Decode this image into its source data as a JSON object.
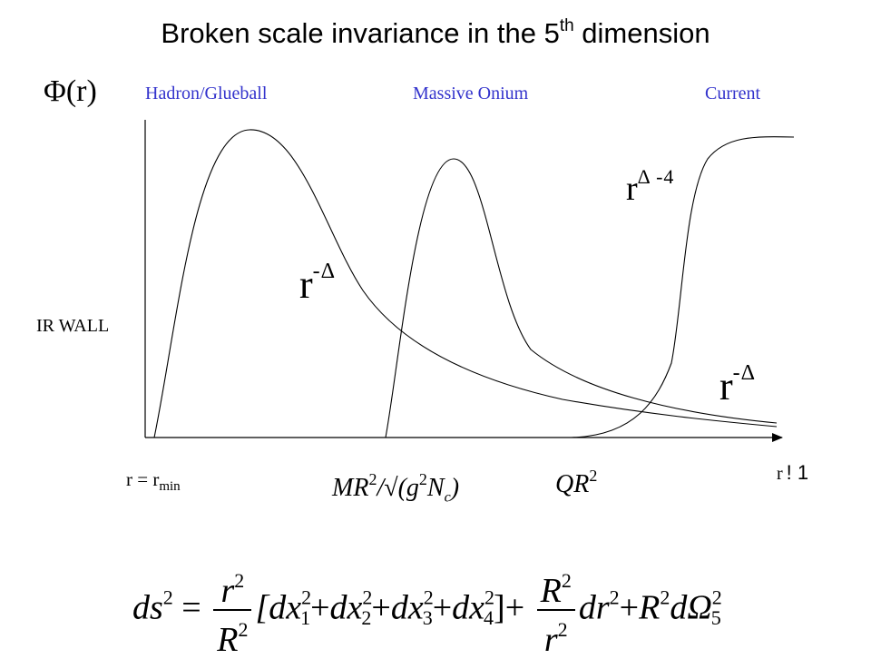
{
  "title": {
    "main": "Broken scale invariance in  the 5",
    "superscript": "th",
    "tail": " dimension"
  },
  "axis": {
    "y_label": "Φ(r)",
    "left_side_label": "IR WALL",
    "x_start_label": "r = r",
    "x_start_subscript": "min",
    "x_end_label": "r",
    "x_end_glyph": "! 1"
  },
  "regions": {
    "hadron": "Hadron/Glueball",
    "onium": "Massive Onium",
    "current": "Current"
  },
  "curve_labels": {
    "upper": {
      "base": "r",
      "exponent": "Δ -4"
    },
    "middle": {
      "base": "r",
      "exponent": "-Δ"
    },
    "lower": {
      "base": "r",
      "exponent": "-Δ"
    }
  },
  "scale_markers": {
    "massive": {
      "left": "MR",
      "power": "2",
      "rest": "/√(g",
      "power2": "2",
      "tail": "N",
      "sub": "c",
      "close": ")"
    },
    "current": {
      "left": "QR",
      "power": "2"
    }
  },
  "metric": {
    "lhs": "ds",
    "lhs_power": "2",
    "equals": "=",
    "frac1_num": "r",
    "frac1_num_power": "2",
    "frac1_den": "R",
    "frac1_den_power": "2",
    "bracket": "[dx",
    "x1": "1",
    "plus": "+",
    "dx": "dx",
    "x2": "2",
    "x3": "3",
    "x4": "4",
    "close": "]",
    "frac2_num": "R",
    "frac2_num_power": "2",
    "frac2_den": "r",
    "frac2_den_power": "2",
    "dr": "dr",
    "dr_power": "2",
    "R": "R",
    "R_power": "2",
    "dOmega": "dΩ",
    "omega_sub": "5",
    "omega_power": "2",
    "squared": "2"
  },
  "colors": {
    "region_labels": "#3333cc",
    "ink": "#000000"
  }
}
